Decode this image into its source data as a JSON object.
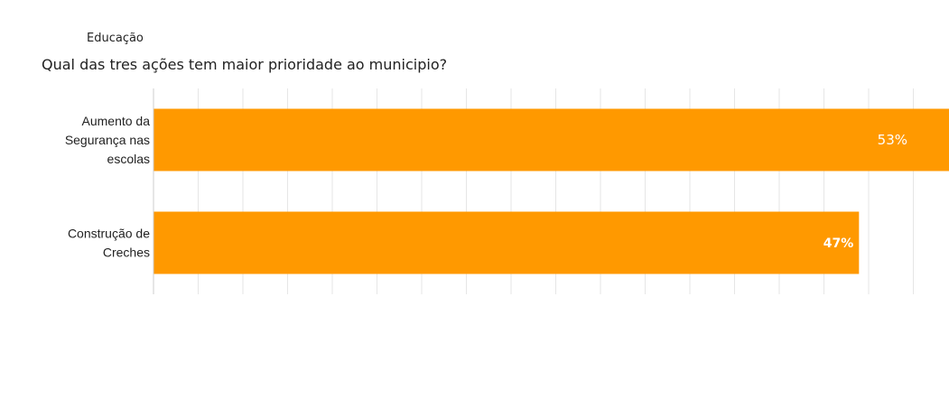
{
  "chart_data": {
    "type": "bar",
    "orientation": "horizontal",
    "subtitle": "Educação",
    "title": "Qual das tres ações tem maior prioridade ao municipio?",
    "categories": [
      [
        "Aumento da",
        "Segurança nas",
        "escolas"
      ],
      [
        "Construção de",
        "Creches"
      ]
    ],
    "values": [
      53,
      47
    ],
    "value_labels": [
      "53%",
      "47%"
    ],
    "xlim": [
      0,
      53
    ],
    "grid": true,
    "legend": "none",
    "bar_color": "#ff9900",
    "label_color": "#ffffff"
  }
}
